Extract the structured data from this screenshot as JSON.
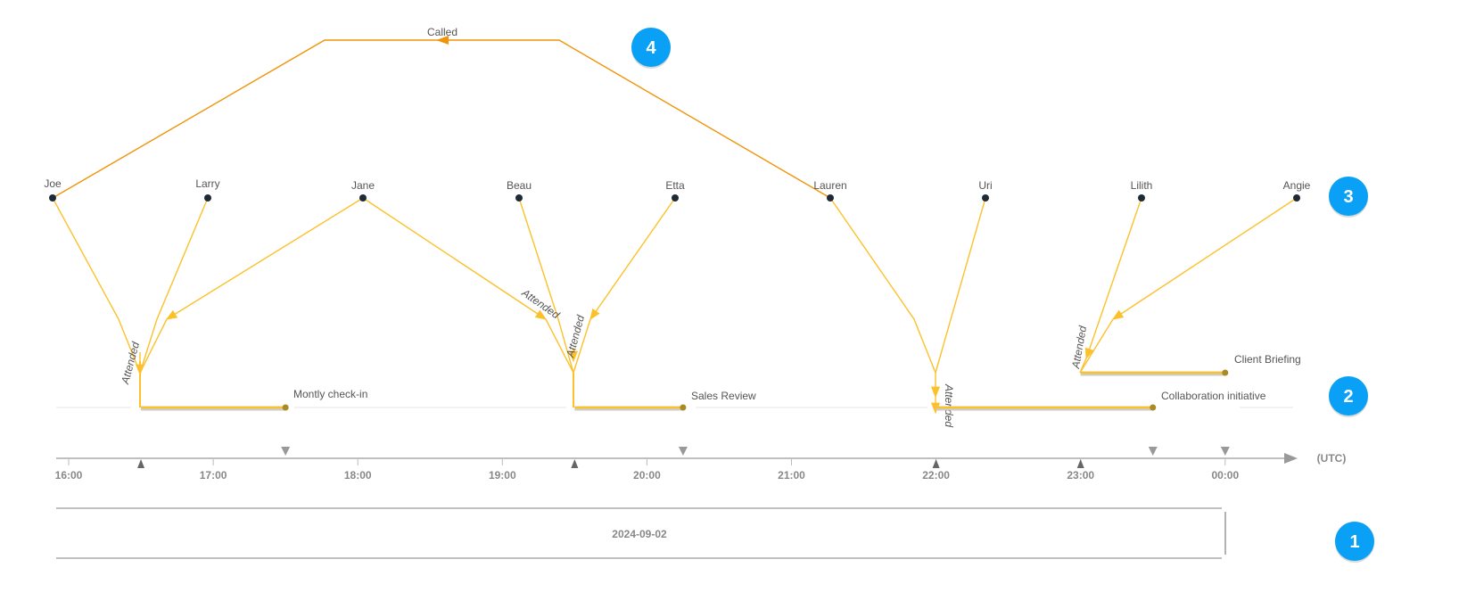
{
  "colors": {
    "attended": "#fcc12a",
    "called": "#f0940a",
    "node": "#1e2a36",
    "event_end": "#a98a25",
    "badge": "#0aa0f5",
    "axis": "#999999"
  },
  "people": [
    "Joe",
    "Larry",
    "Jane",
    "Beau",
    "Etta",
    "Lauren",
    "Uri",
    "Lilith",
    "Angie"
  ],
  "events": [
    "Montly check-in",
    "Sales Review",
    "Collaboration initiative",
    "Client Briefing"
  ],
  "edge_labels": {
    "attended": "Attended",
    "called": "Called"
  },
  "axis": {
    "ticks": [
      "16:00",
      "17:00",
      "18:00",
      "19:00",
      "20:00",
      "21:00",
      "22:00",
      "23:00",
      "00:00"
    ],
    "unit": "(UTC)",
    "date": "2024-09-02"
  },
  "badges": [
    "1",
    "2",
    "3",
    "4"
  ]
}
